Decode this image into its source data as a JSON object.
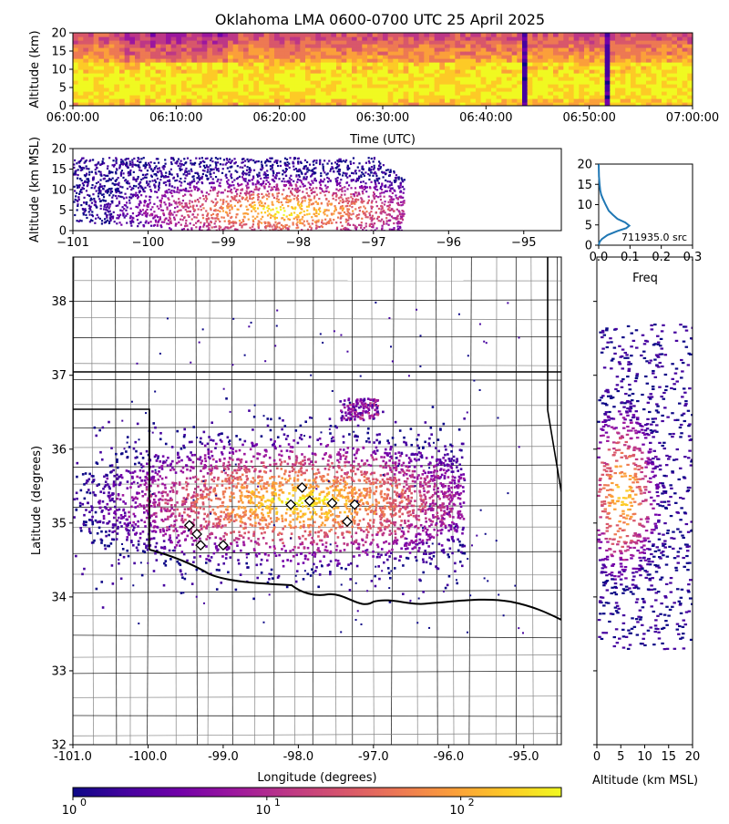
{
  "title": "Oklahoma LMA 0600-0700 UTC 25 April 2025",
  "colors": {
    "cmap": [
      "#0d0887",
      "#46039f",
      "#7201a8",
      "#9c179e",
      "#bd3786",
      "#d8576b",
      "#ed7953",
      "#fb9f3a",
      "#fdca26",
      "#f0f921"
    ],
    "state_border": "#000000",
    "county_border": "#808080",
    "histogram_line": "#1f77b4",
    "marker_fill": "#ffffff",
    "marker_edge": "#000000"
  },
  "marker_shape": "diamond",
  "chart_data": [
    {
      "id": "time-height",
      "type": "heatmap",
      "xlabel": "Time (UTC)",
      "ylabel": "Altitude (km)",
      "xticks": [
        "06:00:00",
        "06:10:00",
        "06:20:00",
        "06:30:00",
        "06:40:00",
        "06:50:00",
        "07:00:00"
      ],
      "yticks": [
        "0",
        "5",
        "10",
        "15",
        "20"
      ],
      "xlim": [
        "06:00:00",
        "07:00:00"
      ],
      "ylim": [
        0,
        20
      ],
      "bright_core_km": [
        2,
        12
      ],
      "sparse_columns": [
        "06:43:30",
        "06:51:30"
      ]
    },
    {
      "id": "lon-alt",
      "type": "heatmap",
      "xlabel": "",
      "ylabel": "Altitude (km MSL)",
      "xticks": [
        "−101",
        "−100",
        "−99",
        "−98",
        "−97",
        "−96",
        "−95"
      ],
      "yticks": [
        "0",
        "5",
        "10",
        "15",
        "20"
      ],
      "xlim": [
        -101,
        -94.5
      ],
      "ylim": [
        0,
        20
      ],
      "core": {
        "lon": -98.2,
        "alt_km": 5
      }
    },
    {
      "id": "alt-histogram",
      "type": "line",
      "xlabel": "Freq",
      "ylabel": "",
      "xticks": [
        "0.0",
        "0.1",
        "0.2",
        "0.3"
      ],
      "yticks": [
        "0",
        "5",
        "10",
        "15",
        "20"
      ],
      "xlim": [
        0,
        0.3
      ],
      "ylim": [
        0,
        20
      ],
      "annotation": "711935.0 src",
      "series": [
        {
          "x": [
            0.0,
            0.003,
            0.01,
            0.028,
            0.06,
            0.088,
            0.098,
            0.085,
            0.06,
            0.045,
            0.032,
            0.022,
            0.013,
            0.008,
            0.005,
            0.003,
            0.001,
            0.0
          ],
          "y": [
            0,
            0.8,
            1.5,
            2.5,
            3.5,
            4.2,
            4.8,
            5.6,
            6.5,
            7.5,
            8.5,
            10,
            11.5,
            12.5,
            13.5,
            15,
            17,
            20
          ]
        }
      ]
    },
    {
      "id": "plan-view",
      "type": "heatmap",
      "xlabel": "Longitude (degrees)",
      "ylabel": "Latitude (degrees)",
      "xticks": [
        "-101.0",
        "-100.0",
        "-99.0",
        "-98.0",
        "-97.0",
        "-96.0",
        "-95.0"
      ],
      "yticks": [
        "32",
        "33",
        "34",
        "35",
        "36",
        "37",
        "38"
      ],
      "xlim": [
        -101,
        -94.5
      ],
      "ylim": [
        32,
        38.6
      ],
      "core": {
        "lon": -98.0,
        "lat": 35.3
      },
      "stations": [
        {
          "lon": -97.95,
          "lat": 35.48
        },
        {
          "lon": -98.1,
          "lat": 35.25
        },
        {
          "lon": -97.85,
          "lat": 35.3
        },
        {
          "lon": -97.55,
          "lat": 35.27
        },
        {
          "lon": -97.25,
          "lat": 35.25
        },
        {
          "lon": -97.35,
          "lat": 35.02
        },
        {
          "lon": -99.45,
          "lat": 34.97
        },
        {
          "lon": -99.35,
          "lat": 34.85
        },
        {
          "lon": -99.3,
          "lat": 34.7
        },
        {
          "lon": -99.0,
          "lat": 34.7
        }
      ]
    },
    {
      "id": "alt-lat",
      "type": "heatmap",
      "xlabel": "Altitude (km MSL)",
      "ylabel": "",
      "xticks": [
        "0",
        "5",
        "10",
        "15",
        "20"
      ],
      "yticks": [],
      "xlim": [
        0,
        20
      ],
      "ylim": [
        32,
        38.6
      ],
      "core": {
        "alt_km": 5,
        "lat": 35.4
      }
    },
    {
      "id": "colorbar",
      "type": "heatmap",
      "scale": "log",
      "ticks": [
        "10",
        "10",
        "10"
      ],
      "tick_exponents": [
        "0",
        "1",
        "2"
      ],
      "range": [
        1,
        330
      ]
    }
  ]
}
